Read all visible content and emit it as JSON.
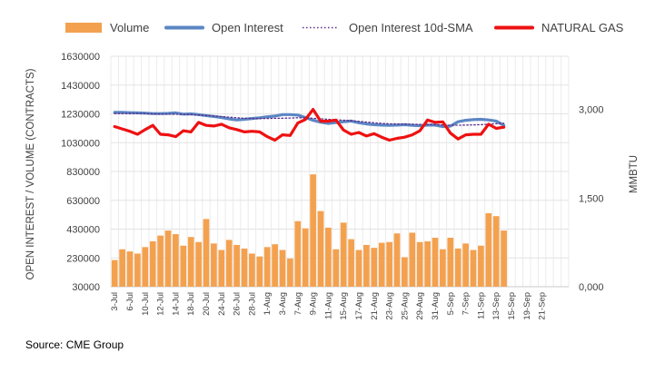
{
  "chart_data": {
    "type": "bar+line",
    "legend": {
      "placement": "top",
      "entries": [
        {
          "name": "Volume",
          "style": "bar",
          "color": "#F4A14F"
        },
        {
          "name": "Open Interest",
          "style": "line",
          "color": "#5B86C4"
        },
        {
          "name": "Open Interest 10d-SMA",
          "style": "dotted",
          "color": "#5A2B8C"
        },
        {
          "name": "NATURAL GAS",
          "style": "line",
          "color": "#EE1111"
        }
      ]
    },
    "y_left": {
      "label": "OPEN INTEREST / VOLUME (CONTRACTS)",
      "min": 30000,
      "max": 1630000,
      "ticks": [
        "30000",
        "230000",
        "430000",
        "630000",
        "830000",
        "1030000",
        "1230000",
        "1430000",
        "1630000"
      ]
    },
    "y_right": {
      "label": "MMBTU",
      "min": 0,
      "max": 3.9,
      "ticks": [
        {
          "value": 0,
          "label": "0,000"
        },
        {
          "value": 1.5,
          "label": "1,500"
        },
        {
          "value": 3.0,
          "label": "3,000"
        }
      ]
    },
    "x_axis": {
      "start": "3-Jul",
      "slots": 60,
      "tick_labels": [
        "3-Jul",
        "6-Jul",
        "10-Jul",
        "12-Jul",
        "14-Jul",
        "18-Jul",
        "20-Jul",
        "24-Jul",
        "26-Jul",
        "28-Jul",
        "1-Aug",
        "3-Aug",
        "7-Aug",
        "9-Aug",
        "11-Aug",
        "15-Aug",
        "17-Aug",
        "21-Aug",
        "23-Aug",
        "25-Aug",
        "29-Aug",
        "31-Aug",
        "5-Sep",
        "7-Sep",
        "11-Sep",
        "13-Sep",
        "15-Sep",
        "19-Sep",
        "21-Sep"
      ]
    },
    "grid": true,
    "series": {
      "volume": [
        215000,
        290000,
        275000,
        260000,
        305000,
        345000,
        385000,
        420000,
        395000,
        315000,
        375000,
        340000,
        500000,
        330000,
        285000,
        355000,
        320000,
        295000,
        260000,
        240000,
        305000,
        325000,
        285000,
        225000,
        485000,
        435000,
        810000,
        555000,
        440000,
        290000,
        475000,
        360000,
        285000,
        320000,
        300000,
        335000,
        340000,
        400000,
        235000,
        405000,
        340000,
        345000,
        370000,
        290000,
        370000,
        295000,
        330000,
        285000,
        315000,
        540000,
        520000,
        420000
      ],
      "open_interest": [
        1240000,
        1240000,
        1238000,
        1237000,
        1235000,
        1232000,
        1232000,
        1233000,
        1237000,
        1228000,
        1230000,
        1225000,
        1218000,
        1212000,
        1205000,
        1195000,
        1188000,
        1192000,
        1198000,
        1203000,
        1210000,
        1215000,
        1225000,
        1225000,
        1222000,
        1205000,
        1185000,
        1172000,
        1163000,
        1170000,
        1175000,
        1180000,
        1168000,
        1160000,
        1155000,
        1152000,
        1150000,
        1152000,
        1155000,
        1150000,
        1148000,
        1152000,
        1152000,
        1142000,
        1145000,
        1175000,
        1185000,
        1190000,
        1192000,
        1188000,
        1180000,
        1150000
      ],
      "open_interest_sma": [
        1232000,
        1232000,
        1232000,
        1232000,
        1231000,
        1230000,
        1229000,
        1228000,
        1227000,
        1226000,
        1225000,
        1222000,
        1219000,
        1215000,
        1211000,
        1207000,
        1203000,
        1200000,
        1198000,
        1197000,
        1198000,
        1199000,
        1200000,
        1201000,
        1203000,
        1202000,
        1199000,
        1196000,
        1192000,
        1189000,
        1186000,
        1183000,
        1178000,
        1173000,
        1168000,
        1164000,
        1161000,
        1160000,
        1159000,
        1158000,
        1157000,
        1156000,
        1155000,
        1153000,
        1151000,
        1151000,
        1152000,
        1153000,
        1155000,
        1158000,
        1162000,
        1165000
      ],
      "natural_gas": [
        2.71,
        2.67,
        2.63,
        2.58,
        2.66,
        2.73,
        2.58,
        2.57,
        2.54,
        2.64,
        2.62,
        2.78,
        2.73,
        2.72,
        2.75,
        2.69,
        2.66,
        2.62,
        2.63,
        2.62,
        2.54,
        2.48,
        2.57,
        2.56,
        2.77,
        2.83,
        3.0,
        2.8,
        2.8,
        2.82,
        2.65,
        2.58,
        2.61,
        2.55,
        2.59,
        2.53,
        2.48,
        2.51,
        2.53,
        2.57,
        2.64,
        2.82,
        2.78,
        2.79,
        2.6,
        2.5,
        2.57,
        2.58,
        2.58,
        2.75,
        2.68,
        2.7
      ]
    }
  },
  "source": "Source: CME Group"
}
